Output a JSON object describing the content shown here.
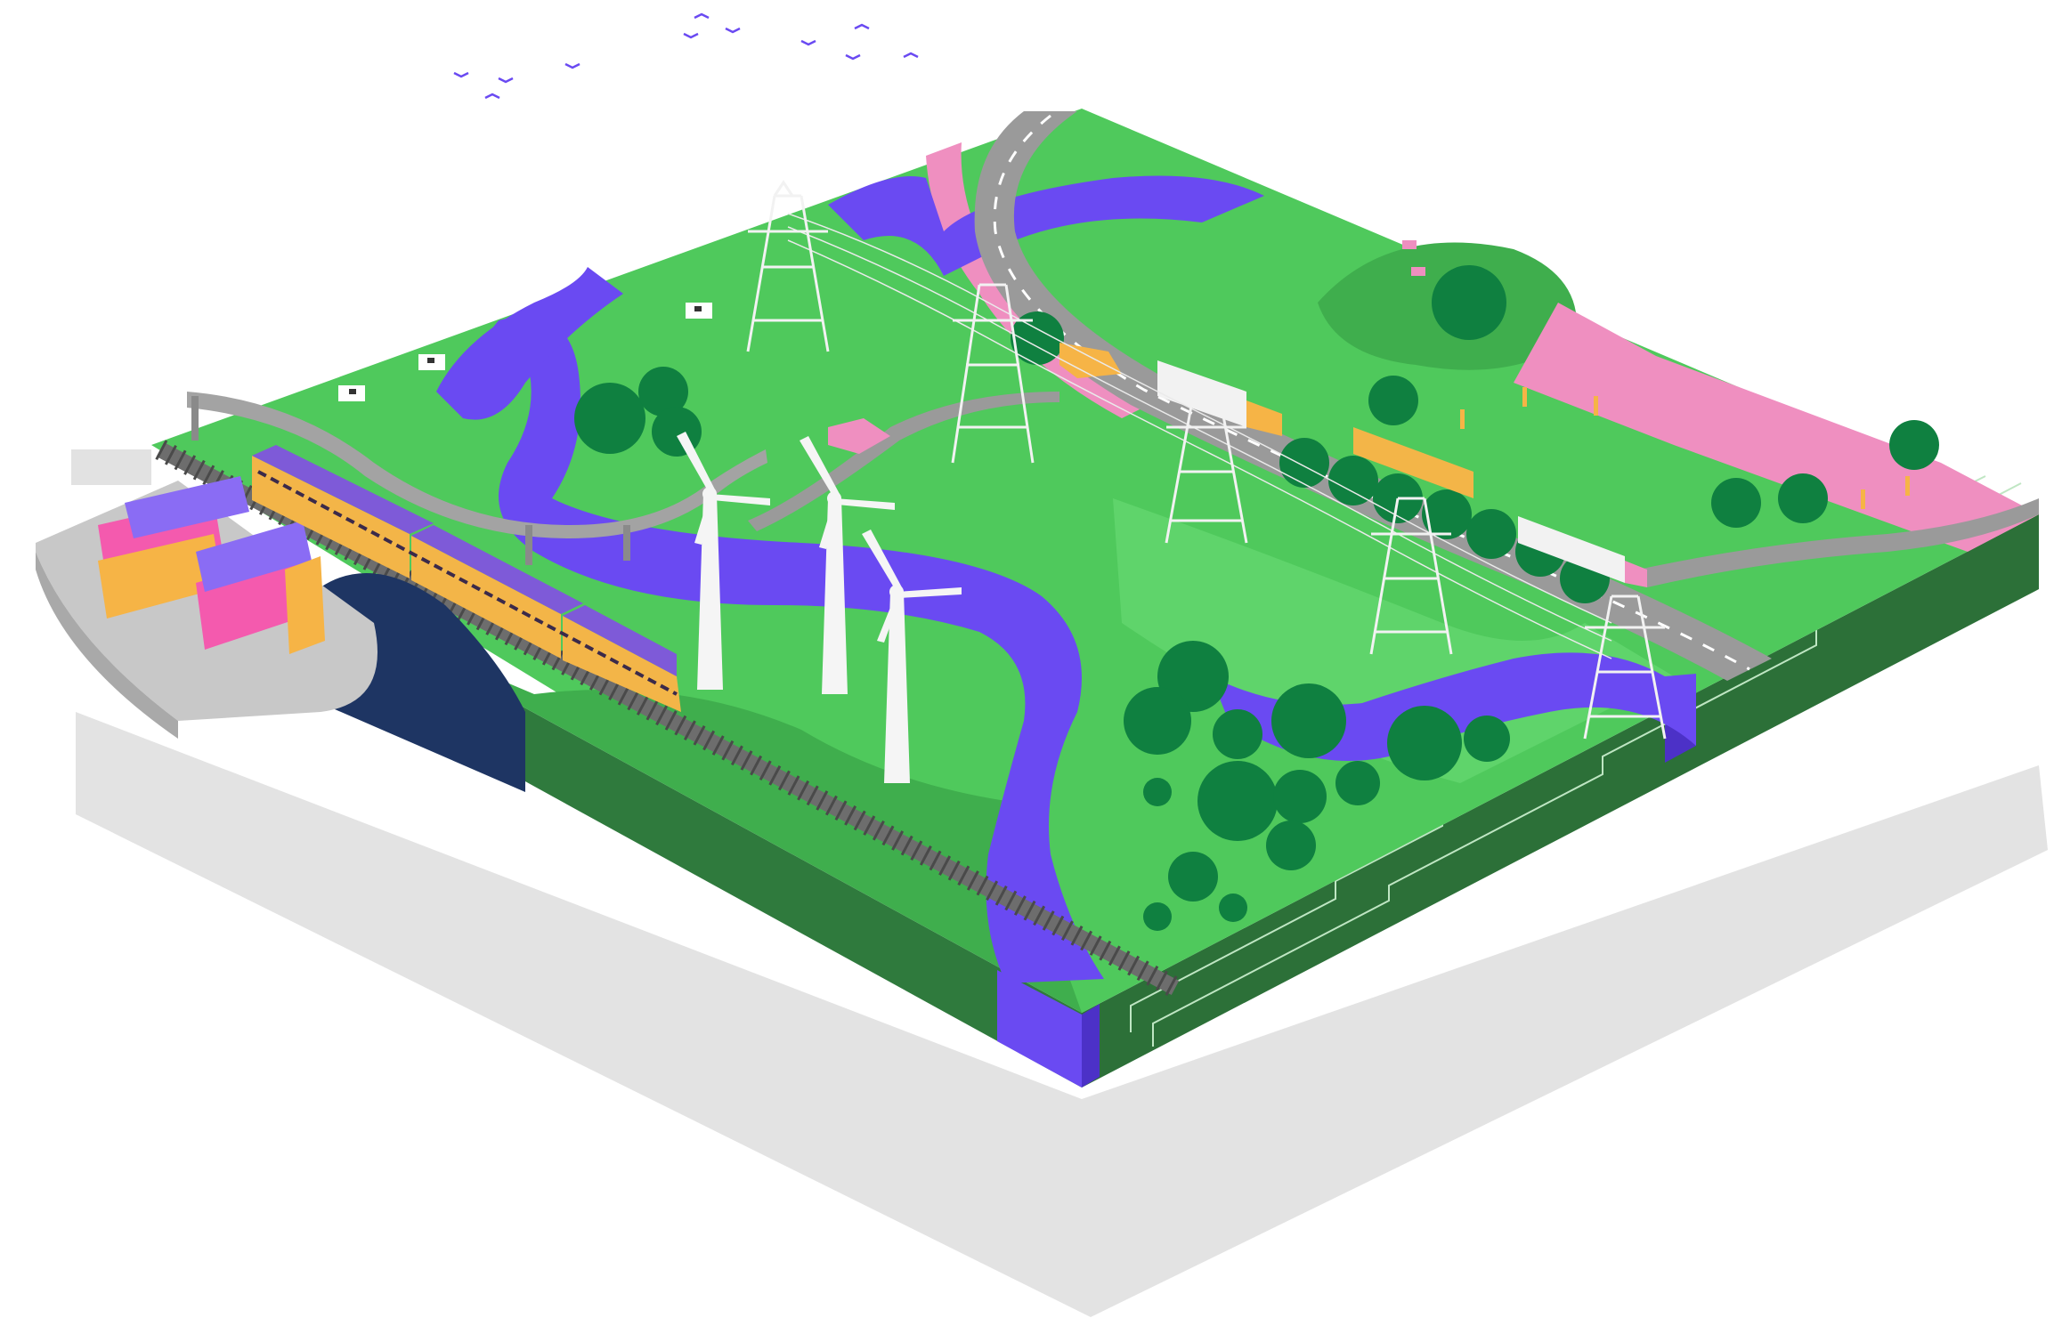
{
  "scene": {
    "subject": "isometric-landscape-tile",
    "colors": {
      "background": "#ffffff",
      "shadow": "#e3e3e3",
      "grass": "#4fc95c",
      "grass_dark": "#39a84a",
      "grass_light": "#5fd46b",
      "tile_side": "#2f7a3d",
      "tile_side_dark": "#215a2c",
      "water": "#6a4af2",
      "water_side": "#4c31c7",
      "road": "#9a9a9a",
      "road_edge": "#7c7c7c",
      "road_line": "#ffffff",
      "pink": "#ef8fc0",
      "tree": "#0f8040",
      "tree_trunk": "#0b6a34",
      "tunnel": "#1e3563",
      "train": "#f3b548",
      "train_roof": "#7e5ad8",
      "container_pink": "#f45aae",
      "container_purple": "#8a6cf4",
      "container_orange": "#f6b446",
      "ship": "#c8c8c8",
      "turbine": "#f5f5f5",
      "pylon": "#f2f2f2",
      "bird": "#6a4af2"
    },
    "icons": {
      "ship": "cargo-ship-icon",
      "train": "train-icon",
      "turbine": "wind-turbine-icon",
      "pylon": "power-pylon-icon",
      "tree": "tree-icon",
      "cow": "cow-icon",
      "car": "car-icon",
      "truck": "truck-icon",
      "bus": "bus-icon",
      "bird": "bird-icon",
      "person": "person-icon"
    }
  }
}
